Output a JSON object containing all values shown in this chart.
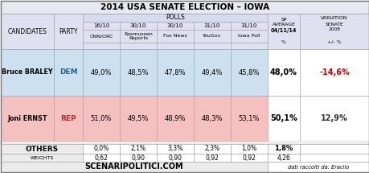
{
  "title": "2014 USA SENATE ELECTION – IOWA",
  "polls_header": "POLLS",
  "poll_dates": [
    "16/10",
    "30/10",
    "30/10",
    "31/10",
    "31/10"
  ],
  "poll_sources": [
    "CNN/ORC",
    "Rasmussen\nReports",
    "Fox News",
    "YouGov",
    "Iowa Poll"
  ],
  "candidates": [
    {
      "name": "Bruce BRALEY",
      "party": "DEM",
      "polls": [
        "49,0%",
        "48,5%",
        "47,8%",
        "49,4%",
        "45,8%"
      ],
      "avg": "48,0%",
      "variation": "-14,6%",
      "variation_color": "#cc0000",
      "row_bg": "#cce0f0",
      "highlight_last": false,
      "party_color": "#1a6699"
    },
    {
      "name": "Joni ERNST",
      "party": "REP",
      "polls": [
        "51,0%",
        "49,5%",
        "48,9%",
        "48,3%",
        "53,1%"
      ],
      "avg": "50,1%",
      "variation": "12,9%",
      "variation_color": "#333333",
      "row_bg": "#f5c0c0",
      "highlight_last": true,
      "party_color": "#cc2222"
    }
  ],
  "others_polls": [
    "0,0%",
    "2,1%",
    "3,3%",
    "2,3%",
    "1,0%"
  ],
  "others_avg": "1,8%",
  "weights": [
    "0,62",
    "0,90",
    "0,90",
    "0,92",
    "0,92"
  ],
  "weights_avg": "4,26",
  "footer_left": "SCENARIPOLITICI.COM",
  "footer_right": "dati raccolti da: Eraclio",
  "header_bg": "#e8e8f0",
  "header_left_bg": "#e0e0f0",
  "polls_header_bg": "#d8daf0",
  "others_bg": "#ebebeb",
  "white": "#ffffff",
  "border": "#aaaaaa"
}
